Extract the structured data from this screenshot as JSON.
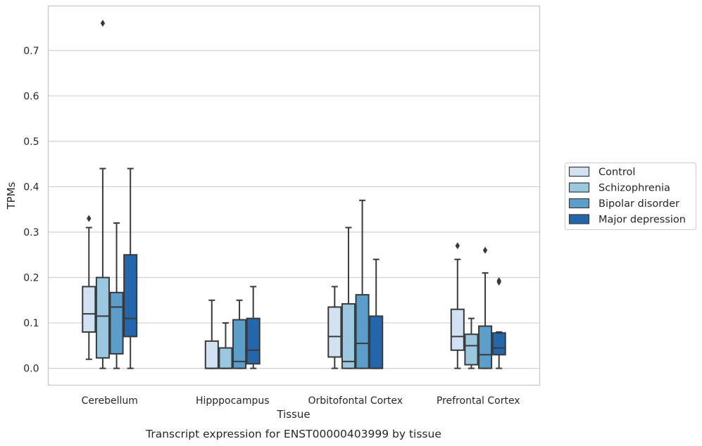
{
  "colors": {
    "series": [
      "#d2e2f2",
      "#9ac8e0",
      "#5a9ec9",
      "#2366ab"
    ],
    "box_edge": "#3a3a3a",
    "grid": "#d0d0d0",
    "frame": "#c8c8c8"
  },
  "caption": "Transcript expression for ENST00000403999 by tissue",
  "chart_data": {
    "type": "box",
    "xlabel": "Tissue",
    "ylabel": "TPMs",
    "ylim": [
      -0.037,
      0.798
    ],
    "yticks": [
      0.0,
      0.1,
      0.2,
      0.3,
      0.4,
      0.5,
      0.6,
      0.7
    ],
    "ytick_labels": [
      "0.0",
      "0.1",
      "0.2",
      "0.3",
      "0.4",
      "0.5",
      "0.6",
      "0.7"
    ],
    "grid": "horizontal",
    "legend_position": "right-center",
    "categories": [
      "Cerebellum",
      "Hipppocampus",
      "Orbitofontal Cortex",
      "Prefrontal Cortex"
    ],
    "series": [
      {
        "name": "Control",
        "boxes": [
          {
            "whisker_low": 0.02,
            "q1": 0.08,
            "median": 0.12,
            "q3": 0.18,
            "whisker_high": 0.31,
            "outliers": [
              0.33
            ]
          },
          {
            "whisker_low": 0.0,
            "q1": 0.0,
            "median": 0.0,
            "q3": 0.06,
            "whisker_high": 0.15,
            "outliers": []
          },
          {
            "whisker_low": 0.0,
            "q1": 0.025,
            "median": 0.07,
            "q3": 0.135,
            "whisker_high": 0.18,
            "outliers": []
          },
          {
            "whisker_low": 0.0,
            "q1": 0.04,
            "median": 0.07,
            "q3": 0.13,
            "whisker_high": 0.24,
            "outliers": [
              0.27
            ]
          }
        ]
      },
      {
        "name": "Schizophrenia",
        "boxes": [
          {
            "whisker_low": 0.0,
            "q1": 0.023,
            "median": 0.115,
            "q3": 0.2,
            "whisker_high": 0.44,
            "outliers": [
              0.76
            ]
          },
          {
            "whisker_low": 0.0,
            "q1": 0.0,
            "median": 0.0,
            "q3": 0.045,
            "whisker_high": 0.1,
            "outliers": []
          },
          {
            "whisker_low": 0.0,
            "q1": 0.0,
            "median": 0.015,
            "q3": 0.142,
            "whisker_high": 0.31,
            "outliers": []
          },
          {
            "whisker_low": 0.0,
            "q1": 0.008,
            "median": 0.05,
            "q3": 0.075,
            "whisker_high": 0.11,
            "outliers": []
          }
        ]
      },
      {
        "name": "Bipolar disorder",
        "boxes": [
          {
            "whisker_low": 0.0,
            "q1": 0.032,
            "median": 0.135,
            "q3": 0.167,
            "whisker_high": 0.32,
            "outliers": []
          },
          {
            "whisker_low": 0.0,
            "q1": 0.0,
            "median": 0.015,
            "q3": 0.107,
            "whisker_high": 0.15,
            "outliers": []
          },
          {
            "whisker_low": 0.0,
            "q1": 0.0,
            "median": 0.055,
            "q3": 0.162,
            "whisker_high": 0.37,
            "outliers": []
          },
          {
            "whisker_low": 0.0,
            "q1": 0.0,
            "median": 0.03,
            "q3": 0.093,
            "whisker_high": 0.21,
            "outliers": [
              0.26
            ]
          }
        ]
      },
      {
        "name": "Major depression",
        "boxes": [
          {
            "whisker_low": 0.0,
            "q1": 0.07,
            "median": 0.11,
            "q3": 0.25,
            "whisker_high": 0.44,
            "outliers": []
          },
          {
            "whisker_low": 0.0,
            "q1": 0.01,
            "median": 0.04,
            "q3": 0.11,
            "whisker_high": 0.18,
            "outliers": []
          },
          {
            "whisker_low": 0.0,
            "q1": 0.0,
            "median": 0.0,
            "q3": 0.115,
            "whisker_high": 0.24,
            "outliers": []
          },
          {
            "whisker_low": 0.0,
            "q1": 0.03,
            "median": 0.045,
            "q3": 0.078,
            "whisker_high": 0.08,
            "outliers": [
              0.19,
              0.193
            ]
          }
        ]
      }
    ]
  }
}
